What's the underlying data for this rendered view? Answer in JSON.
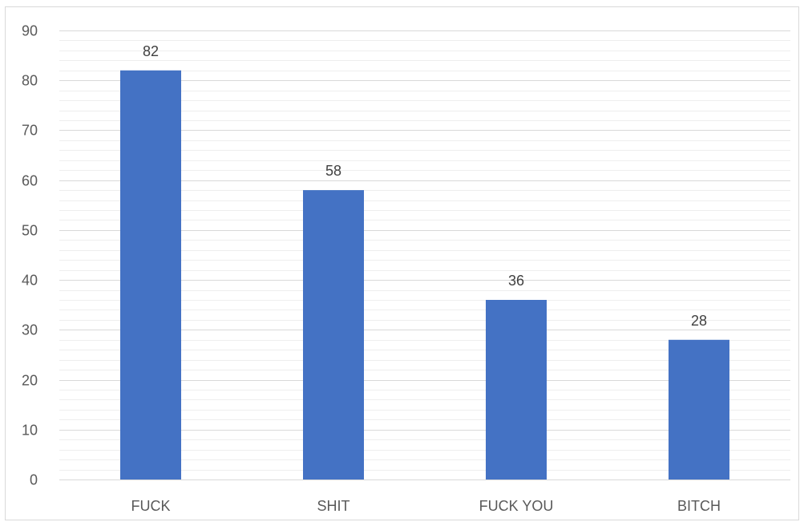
{
  "chart_data": {
    "type": "bar",
    "categories": [
      "FUCK",
      "SHIT",
      "FUCK YOU",
      "BITCH"
    ],
    "values": [
      82,
      58,
      36,
      28
    ],
    "ylim": [
      0,
      90
    ],
    "yticks": [
      0,
      10,
      20,
      30,
      40,
      50,
      60,
      70,
      80,
      90
    ],
    "grid": true,
    "minor_grid": true,
    "legend": "none",
    "data_labels": true,
    "bar_color": "#4472c4",
    "gridline_color": "#d9d9d9"
  }
}
